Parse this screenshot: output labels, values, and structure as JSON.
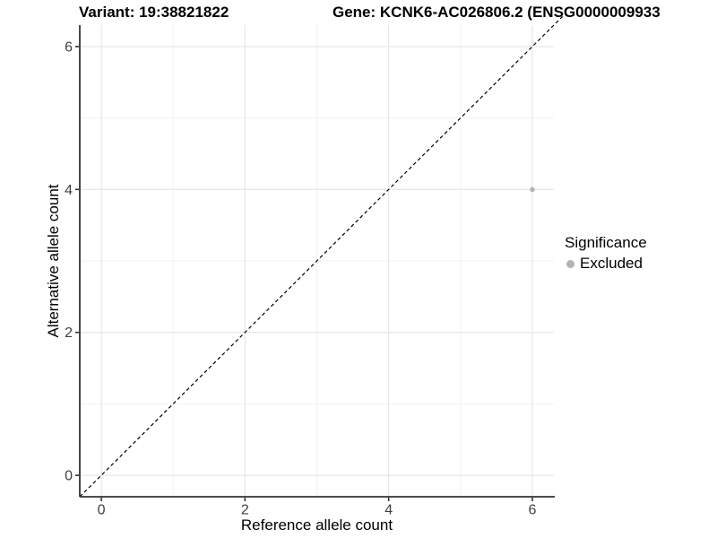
{
  "figure": {
    "background": "#ffffff"
  },
  "chart_data": {
    "type": "scatter",
    "titles": {
      "left": "Variant: 19:38821822",
      "right": "Gene: KCNK6-AC026806.2 (ENSG0000009933"
    },
    "xlabel": "Reference allele count",
    "ylabel": "Alternative allele count",
    "xlim": [
      -0.3,
      6.3
    ],
    "ylim": [
      -0.3,
      6.3
    ],
    "x_ticks": [
      0,
      2,
      4,
      6
    ],
    "y_ticks": [
      0,
      2,
      4,
      6
    ],
    "x_minor_ticks": [
      1,
      3,
      5
    ],
    "y_minor_ticks": [
      1,
      3,
      5
    ],
    "grid": "major and minor gridlines on, white background",
    "points": [
      {
        "x": 6,
        "y": 4,
        "significance": "Excluded",
        "color": "#b3b3b3",
        "radius": 2.8
      }
    ],
    "reference_line": {
      "type": "identity",
      "slope": 1,
      "intercept": 0,
      "style": "dashed",
      "color": "#000000"
    },
    "legend": {
      "title": "Significance",
      "position": "right",
      "items": [
        {
          "label": "Excluded",
          "color": "#b3b3b3",
          "marker": "circle"
        }
      ]
    },
    "colors": {
      "grid_major": "#e4e4e4",
      "grid_minor": "#f1f1f1",
      "axis_line": "#333333",
      "tick_label": "#404040",
      "title": "#000000"
    }
  }
}
